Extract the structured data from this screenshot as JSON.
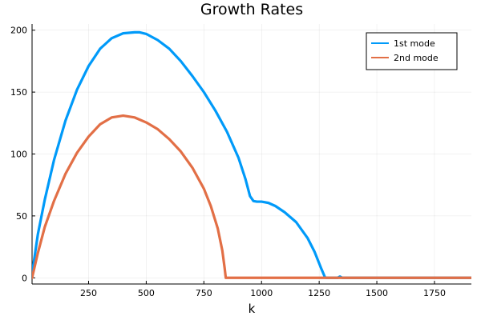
{
  "chart_data": {
    "type": "line",
    "title": "Growth Rates",
    "xlabel": "k",
    "ylabel": "",
    "xlim": [
      5,
      1910
    ],
    "ylim": [
      -5,
      205
    ],
    "xticks": [
      250,
      500,
      750,
      1000,
      1250,
      1500,
      1750
    ],
    "yticks": [
      0,
      50,
      100,
      150,
      200
    ],
    "grid": true,
    "legend_position": "top-right",
    "series": [
      {
        "name": "1st mode",
        "color": "#009af9",
        "x": [
          5,
          30,
          60,
          100,
          150,
          200,
          250,
          300,
          350,
          400,
          450,
          470,
          500,
          550,
          600,
          650,
          700,
          750,
          800,
          850,
          900,
          930,
          950,
          965,
          980,
          1000,
          1030,
          1060,
          1100,
          1150,
          1200,
          1230,
          1260,
          1275,
          1280,
          1285,
          1330,
          1340,
          1350,
          1910
        ],
        "y": [
          3,
          35,
          63,
          95,
          127,
          152,
          171,
          185,
          193.5,
          197.5,
          198.3,
          198.3,
          197,
          192,
          185,
          175,
          163,
          150,
          135,
          118,
          97,
          80,
          66,
          62,
          61.5,
          61.5,
          60.5,
          58,
          53,
          45,
          32,
          21,
          7,
          0.5,
          0,
          0,
          0,
          1,
          0,
          0
        ]
      },
      {
        "name": "2nd mode",
        "color": "#e26f46",
        "x": [
          5,
          30,
          60,
          100,
          150,
          200,
          250,
          300,
          350,
          400,
          450,
          500,
          550,
          600,
          650,
          700,
          750,
          780,
          810,
          830,
          840,
          845,
          1910
        ],
        "y": [
          0,
          20,
          41,
          62,
          84,
          101,
          114,
          124,
          129.5,
          131,
          129.5,
          125.5,
          120,
          112,
          102,
          89,
          72,
          58,
          40,
          22,
          8,
          0,
          0
        ]
      }
    ]
  }
}
